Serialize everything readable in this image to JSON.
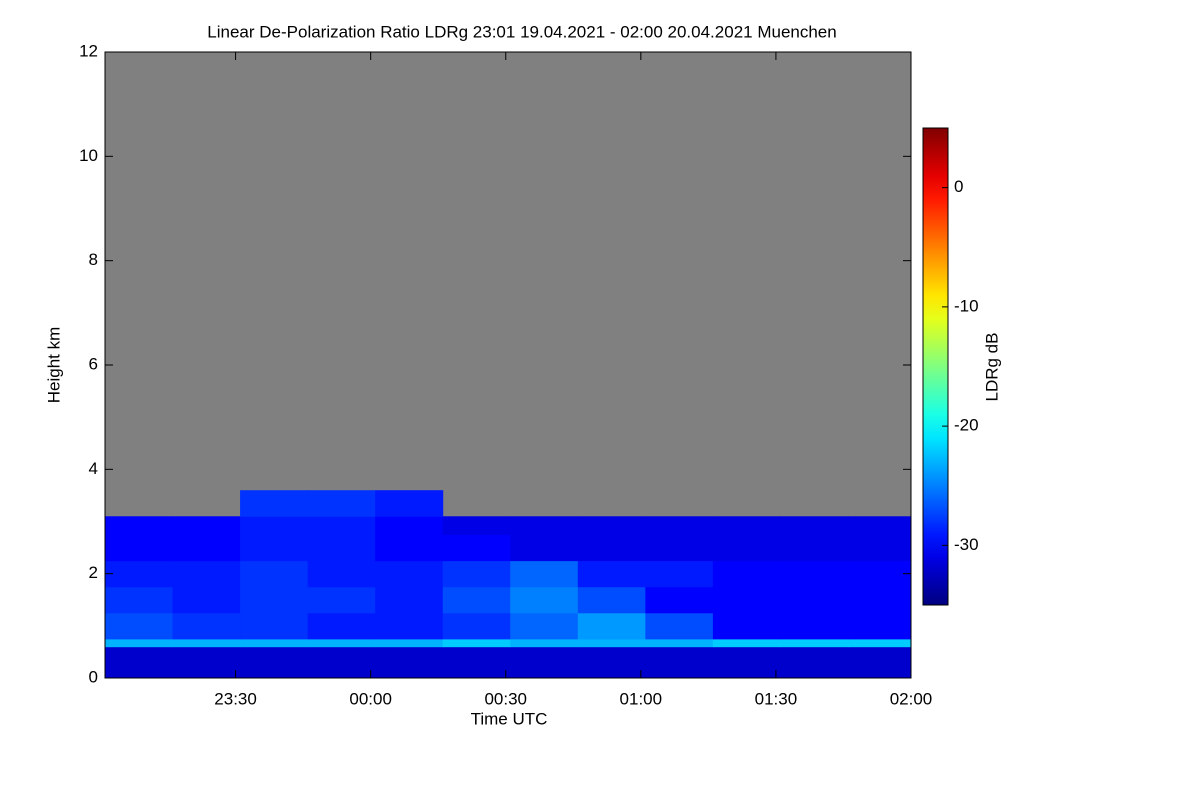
{
  "chart_data": {
    "type": "heatmap",
    "title": "Linear De-Polarization Ratio LDRg   23:01 19.04.2021 - 02:00 20.04.2021 Muenchen",
    "xlabel": "Time UTC",
    "ylabel": "Height km",
    "colorbar_label": "LDRg dB",
    "xlim": [
      1,
      180
    ],
    "xticks": [
      {
        "value": 30,
        "label": "23:30"
      },
      {
        "value": 60,
        "label": "00:00"
      },
      {
        "value": 90,
        "label": "00:30"
      },
      {
        "value": 120,
        "label": "01:00"
      },
      {
        "value": 150,
        "label": "01:30"
      },
      {
        "value": 180,
        "label": "02:00"
      }
    ],
    "ylim": [
      0,
      12
    ],
    "yticks": [
      0,
      2,
      4,
      6,
      8,
      10,
      12
    ],
    "clim": [
      -35,
      5
    ],
    "cticks": [
      0,
      -10,
      -20,
      -30
    ],
    "colormap": "jet",
    "missing_color": "#808080",
    "xbins": [
      1,
      16,
      31,
      46,
      61,
      76,
      91,
      106,
      121,
      136,
      151,
      166,
      180
    ],
    "ybins": [
      0,
      0.6,
      0.75,
      1.25,
      1.75,
      2.25,
      2.75,
      3.1,
      3.6
    ],
    "z": [
      [
        -32,
        -32,
        -32,
        -32,
        -32,
        -32,
        -32,
        -32,
        -32,
        -32,
        -32,
        -32
      ],
      [
        -23,
        -23,
        -23,
        -23,
        -23,
        -22,
        -23,
        -23,
        -23,
        -22,
        -22,
        -22
      ],
      [
        -27,
        -28,
        -28,
        -29,
        -29,
        -28,
        -26,
        -24,
        -27,
        -30,
        -30,
        -30
      ],
      [
        -28,
        -29,
        -28,
        -28,
        -29,
        -27,
        -25,
        -27,
        -30,
        -30,
        -30,
        -30
      ],
      [
        -29,
        -29,
        -28,
        -29,
        -29,
        -28,
        -26,
        -29,
        -29,
        -30,
        -30,
        -30
      ],
      [
        -30,
        -30,
        -29,
        -29,
        -30,
        -30,
        -31,
        -31,
        -31,
        -31,
        -31,
        -31
      ],
      [
        -30,
        -30,
        -29,
        -29,
        -30,
        -31,
        -31,
        -31,
        -31,
        -31,
        -31,
        -31
      ],
      [
        null,
        null,
        -28,
        -28,
        -29,
        null,
        null,
        null,
        null,
        null,
        null,
        null
      ]
    ]
  }
}
